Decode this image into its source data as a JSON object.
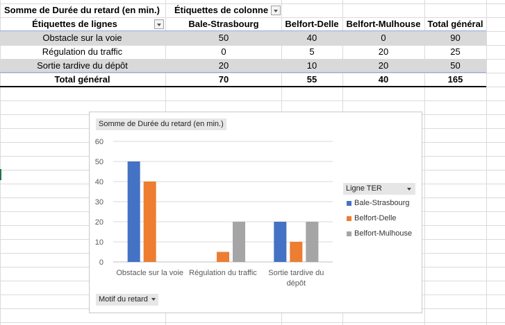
{
  "pivot": {
    "values_header": "Somme de Durée du retard (en min.)",
    "columns_header": "Étiquettes de colonne",
    "rows_header": "Étiquettes de lignes",
    "column_labels": [
      "Bale-Strasbourg",
      "Belfort-Delle",
      "Belfort-Mulhouse",
      "Total général"
    ],
    "rows": [
      {
        "label": "Obstacle sur la voie",
        "values": [
          "50",
          "40",
          "0",
          "90"
        ]
      },
      {
        "label": "Régulation du traffic",
        "values": [
          "0",
          "5",
          "20",
          "25"
        ]
      },
      {
        "label": "Sortie tardive du dépôt",
        "values": [
          "20",
          "10",
          "20",
          "50"
        ]
      }
    ],
    "total": {
      "label": "Total général",
      "values": [
        "70",
        "55",
        "40",
        "165"
      ]
    }
  },
  "chart_ui": {
    "values_button": "Somme  de Durée du retard (en min.)",
    "axis_button": "Motif du retard",
    "legend_button": "Ligne TER"
  },
  "colors": {
    "Bale-Strasbourg": "#4472c4",
    "Belfort-Delle": "#ed7d31",
    "Belfort-Mulhouse": "#a5a5a5",
    "gridline": "#d9d9d9",
    "pivot_shade": "#d9d9d9"
  },
  "chart_data": {
    "type": "bar",
    "categories": [
      [
        "Obstacle sur la voie"
      ],
      [
        "Régulation du traffic"
      ],
      [
        "Sortie tardive du",
        "dépôt"
      ]
    ],
    "series": [
      {
        "name": "Bale-Strasbourg",
        "values": [
          50,
          0,
          20
        ]
      },
      {
        "name": "Belfort-Delle",
        "values": [
          40,
          5,
          10
        ]
      },
      {
        "name": "Belfort-Mulhouse",
        "values": [
          0,
          20,
          20
        ]
      }
    ],
    "ylim": [
      0,
      60
    ],
    "yticks": [
      0,
      10,
      20,
      30,
      40,
      50,
      60
    ],
    "grid": true,
    "legend_position": "right"
  }
}
